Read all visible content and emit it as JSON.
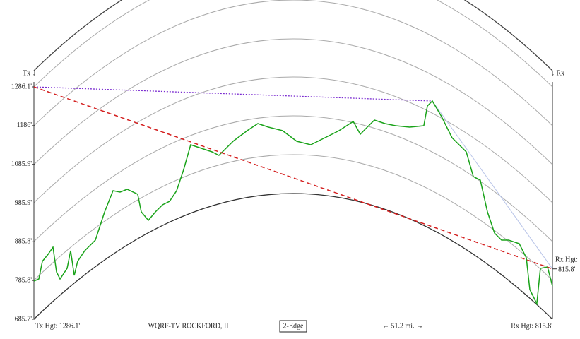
{
  "chart_data": {
    "type": "line",
    "color": "#1aa31a",
    "tx_label": "Tx ↓",
    "rx_label": "↓ Rx",
    "rx_side_label": "Rx Hgt:",
    "rx_side_value": "815.8'",
    "footer": {
      "tx_height": "Tx Hgt: 1286.1'",
      "station": "WQRF-TV ROCKFORD, IL",
      "mode": "2-Edge",
      "distance": "← 51.2 mi. →",
      "rx_height": "Rx Hgt: 815.8'"
    },
    "tx_height": 1286.1,
    "rx_height": 815.8,
    "xlim": [
      0,
      51.2
    ],
    "ylim": [
      685.7,
      1286.1
    ],
    "yticks": [
      {
        "value": 1286.1,
        "label": "1286.1'"
      },
      {
        "value": 1186,
        "label": "1186'"
      },
      {
        "value": 1085.9,
        "label": "1085.9'"
      },
      {
        "value": 985.9,
        "label": "985.9'"
      },
      {
        "value": 885.8,
        "label": "885.8'"
      },
      {
        "value": 785.8,
        "label": "785.8'"
      },
      {
        "value": 685.7,
        "label": "685.7'"
      }
    ],
    "x": [
      0,
      0.49,
      0.84,
      1.4,
      1.88,
      2.23,
      2.58,
      3.28,
      3.63,
      3.98,
      4.32,
      5.02,
      6.07,
      6.98,
      7.81,
      8.51,
      9.21,
      10.25,
      10.6,
      11.3,
      12.0,
      12.7,
      13.39,
      14.09,
      14.79,
      15.48,
      16.53,
      17.58,
      18.27,
      19.67,
      21.06,
      22.11,
      23.16,
      24.55,
      25.95,
      27.34,
      28.74,
      30.13,
      31.53,
      32.23,
      32.92,
      33.62,
      34.67,
      35.71,
      37.11,
      38.5,
      38.85,
      39.34,
      40.25,
      41.29,
      42.69,
      43.39,
      44.08,
      44.78,
      45.48,
      46.18,
      46.87,
      47.92,
      48.62,
      48.97,
      49.66,
      50.01,
      50.71,
      51.2
    ],
    "values": [
      784.3,
      789.8,
      835.4,
      853.6,
      871.9,
      808.0,
      789.8,
      817.1,
      862.7,
      798.9,
      835.4,
      862.7,
      890.1,
      963.1,
      1017.9,
      1014.2,
      1021.5,
      1008.7,
      963.1,
      941.2,
      963.1,
      981.4,
      990.5,
      1017.9,
      1072.6,
      1136.5,
      1127.3,
      1118.2,
      1109.1,
      1145.6,
      1173.0,
      1191.2,
      1182.1,
      1173.0,
      1145.6,
      1136.5,
      1154.7,
      1173.0,
      1196.7,
      1163.8,
      1182.1,
      1200.3,
      1191.2,
      1185.7,
      1182.1,
      1185.7,
      1236.8,
      1249.6,
      1209.5,
      1154.7,
      1118.2,
      1054.4,
      1045.2,
      963.1,
      908.4,
      890.1,
      890.1,
      881.0,
      844.5,
      762.4,
      725.9,
      817.1,
      820.8,
      771.5
    ]
  }
}
